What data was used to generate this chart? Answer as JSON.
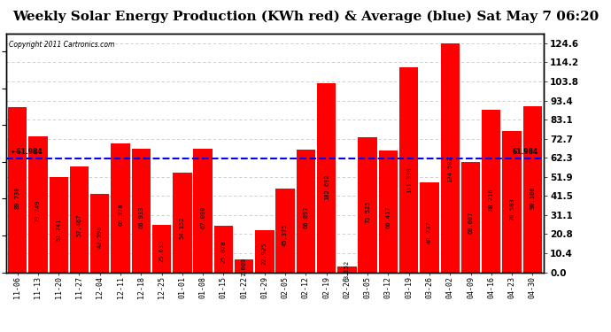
{
  "title": "Weekly Solar Energy Production (KWh red) & Average (blue) Sat May 7 06:20",
  "copyright": "Copyright 2011 Cartronics.com",
  "categories": [
    "11-06",
    "11-13",
    "11-20",
    "11-27",
    "12-04",
    "12-11",
    "12-18",
    "12-25",
    "01-01",
    "01-08",
    "01-15",
    "01-22",
    "01-29",
    "02-05",
    "02-12",
    "02-19",
    "02-26",
    "03-05",
    "03-12",
    "03-19",
    "03-26",
    "04-02",
    "04-09",
    "04-16",
    "04-23",
    "04-30"
  ],
  "values": [
    89.73,
    73.749,
    51.741,
    57.467,
    42.598,
    69.978,
    66.933,
    25.633,
    54.152,
    67.09,
    25.078,
    7.009,
    22.925,
    45.375,
    66.897,
    102.692,
    3.152,
    73.525,
    66.417,
    111.33,
    48.737,
    124.582,
    60.007,
    88.216,
    76.583,
    90.1
  ],
  "average": 61.984,
  "bar_color": "#ff0000",
  "avg_line_color": "#0000ff",
  "bg_color": "#ffffff",
  "plot_bg_color": "#ffffff",
  "grid_color": "#c8c8c8",
  "ylim_min": 0.0,
  "ylim_max": 130.0,
  "yticks": [
    0.0,
    10.4,
    20.8,
    31.1,
    41.5,
    51.9,
    62.3,
    72.7,
    83.1,
    93.4,
    103.8,
    114.2,
    124.6
  ],
  "title_fontsize": 11,
  "value_label_fontsize": 5,
  "xtick_fontsize": 6,
  "ytick_fontsize": 7.5
}
